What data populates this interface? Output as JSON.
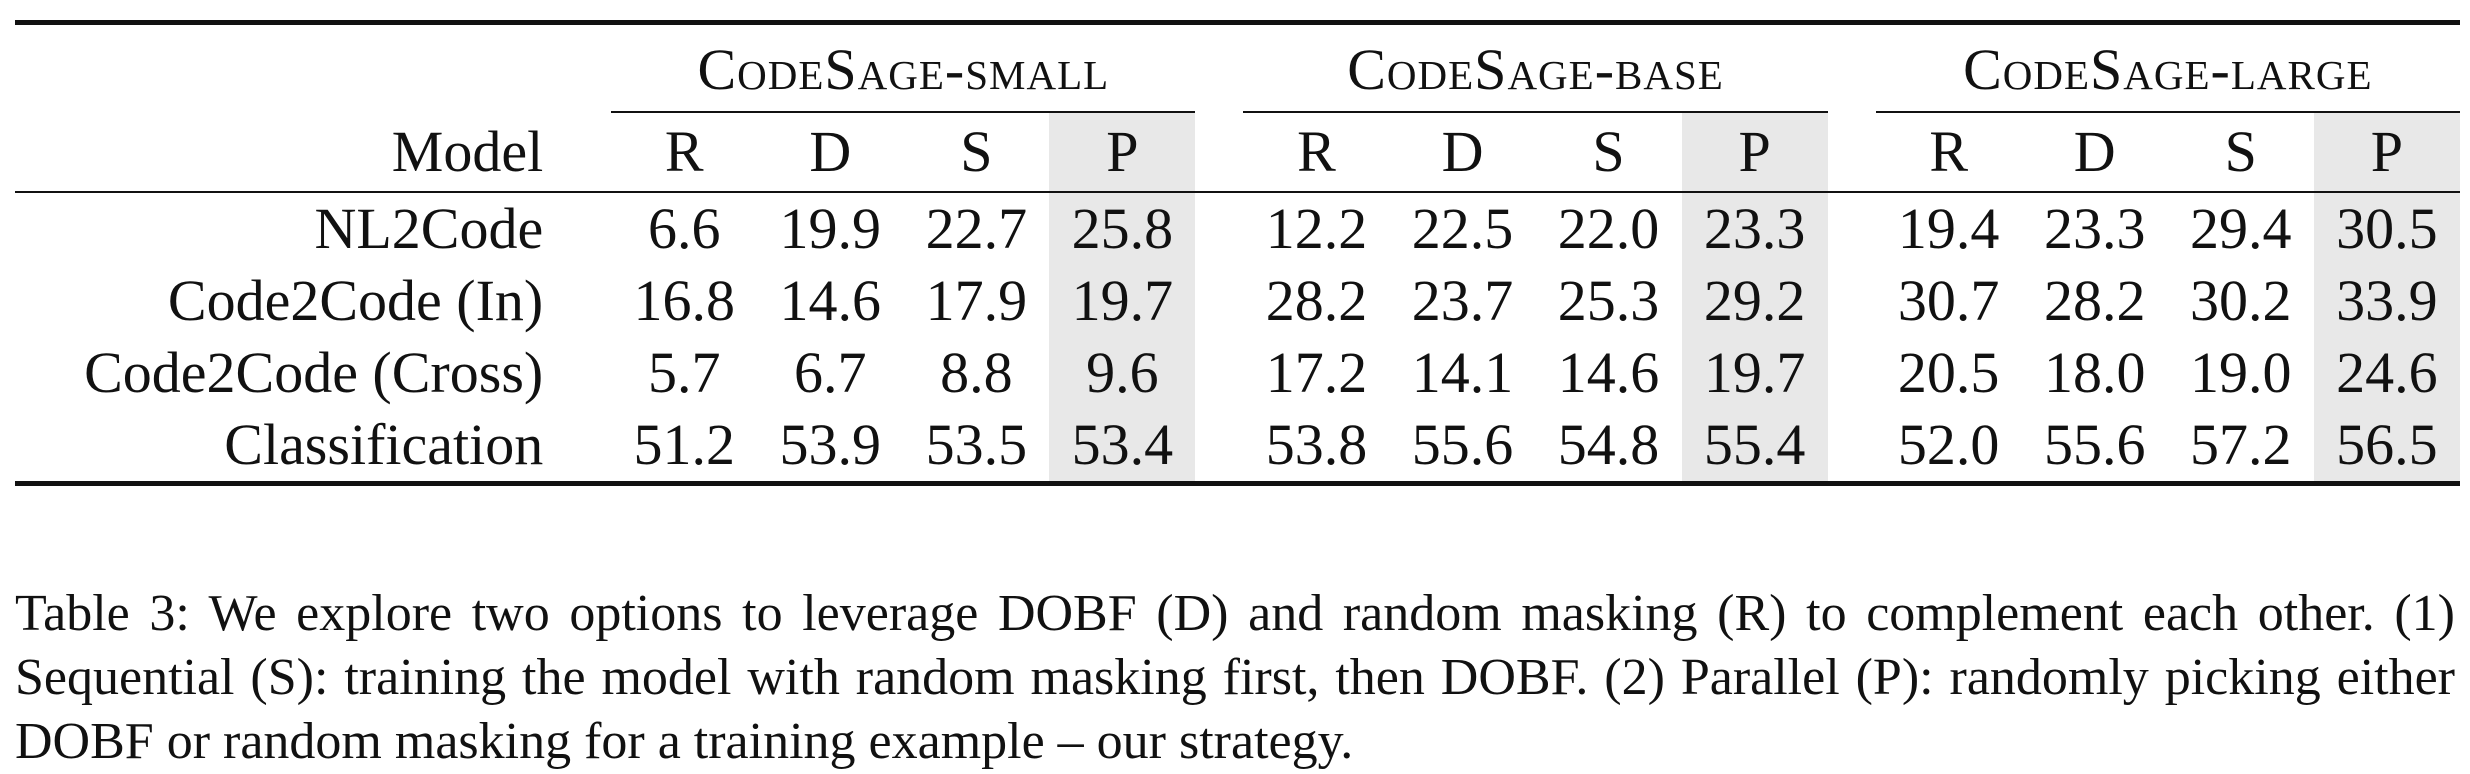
{
  "table": {
    "groups": [
      "CodeSage-small",
      "CodeSage-base",
      "CodeSage-large"
    ],
    "model_header": "Model",
    "sub_headers": [
      "R",
      "D",
      "S",
      "P"
    ],
    "rows": [
      {
        "model": "NL2Code",
        "values": [
          "6.6",
          "19.9",
          "22.7",
          "25.8",
          "12.2",
          "22.5",
          "22.0",
          "23.3",
          "19.4",
          "23.3",
          "29.4",
          "30.5"
        ]
      },
      {
        "model": "Code2Code (In)",
        "values": [
          "16.8",
          "14.6",
          "17.9",
          "19.7",
          "28.2",
          "23.7",
          "25.3",
          "29.2",
          "30.7",
          "28.2",
          "30.2",
          "33.9"
        ]
      },
      {
        "model": "Code2Code (Cross)",
        "values": [
          "5.7",
          "6.7",
          "8.8",
          "9.6",
          "17.2",
          "14.1",
          "14.6",
          "19.7",
          "20.5",
          "18.0",
          "19.0",
          "24.6"
        ]
      },
      {
        "model": "Classification",
        "values": [
          "51.2",
          "53.9",
          "53.5",
          "53.4",
          "53.8",
          "55.6",
          "54.8",
          "55.4",
          "52.0",
          "55.6",
          "57.2",
          "56.5"
        ]
      }
    ]
  },
  "caption": "Table 3: We explore two options to leverage DOBF (D) and random masking (R) to complement each other. (1) Sequential (S): training the model with random masking first, then DOBF. (2) Parallel (P): randomly picking either DOBF or random masking for a training example – our strategy."
}
